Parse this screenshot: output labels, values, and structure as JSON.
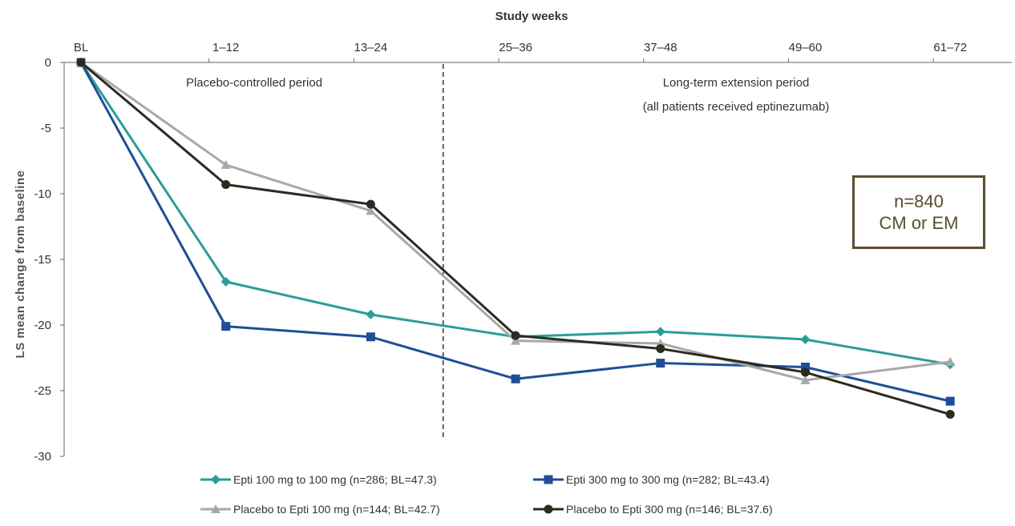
{
  "chart_data": {
    "type": "line",
    "xlabel": "Study weeks",
    "ylabel": "LS mean change from baseline",
    "categories": [
      "BL",
      "1–12",
      "13–24",
      "25–36",
      "37–48",
      "49–60",
      "61–72"
    ],
    "yticks": [
      "0",
      "-5",
      "-10",
      "-15",
      "-20",
      "-25",
      "-30"
    ],
    "ylim": [
      -30,
      0
    ],
    "period_labels": {
      "placebo": "Placebo-controlled period",
      "extension_line1": "Long-term extension period",
      "extension_line2": "(all patients received eptinezumab)"
    },
    "divider_after_category": "13–24",
    "annotation": {
      "line1": "n=840",
      "line2": "CM or EM"
    },
    "series": [
      {
        "name": "Epti 100 mg to 100 mg (n=286; BL=47.3)",
        "color": "#2a9d9a",
        "marker": "diamond",
        "values": [
          0,
          -16.7,
          -19.2,
          -20.9,
          -20.5,
          -21.1,
          -23.0
        ]
      },
      {
        "name": "Epti 300 mg to 300 mg (n=282; BL=43.4)",
        "color": "#1f4e96",
        "marker": "square",
        "values": [
          0,
          -20.1,
          -20.9,
          -24.1,
          -22.9,
          -23.2,
          -25.8
        ]
      },
      {
        "name": "Placebo to Epti 100 mg (n=144; BL=42.7)",
        "color": "#a8a8a8",
        "marker": "triangle",
        "values": [
          0,
          -7.8,
          -11.3,
          -21.2,
          -21.4,
          -24.2,
          -22.8
        ]
      },
      {
        "name": "Placebo to Epti 300 mg (n=146; BL=37.6)",
        "color": "#2b2b20",
        "marker": "circle",
        "values": [
          0,
          -9.3,
          -10.8,
          -20.8,
          -21.8,
          -23.6,
          -26.8
        ]
      }
    ]
  }
}
